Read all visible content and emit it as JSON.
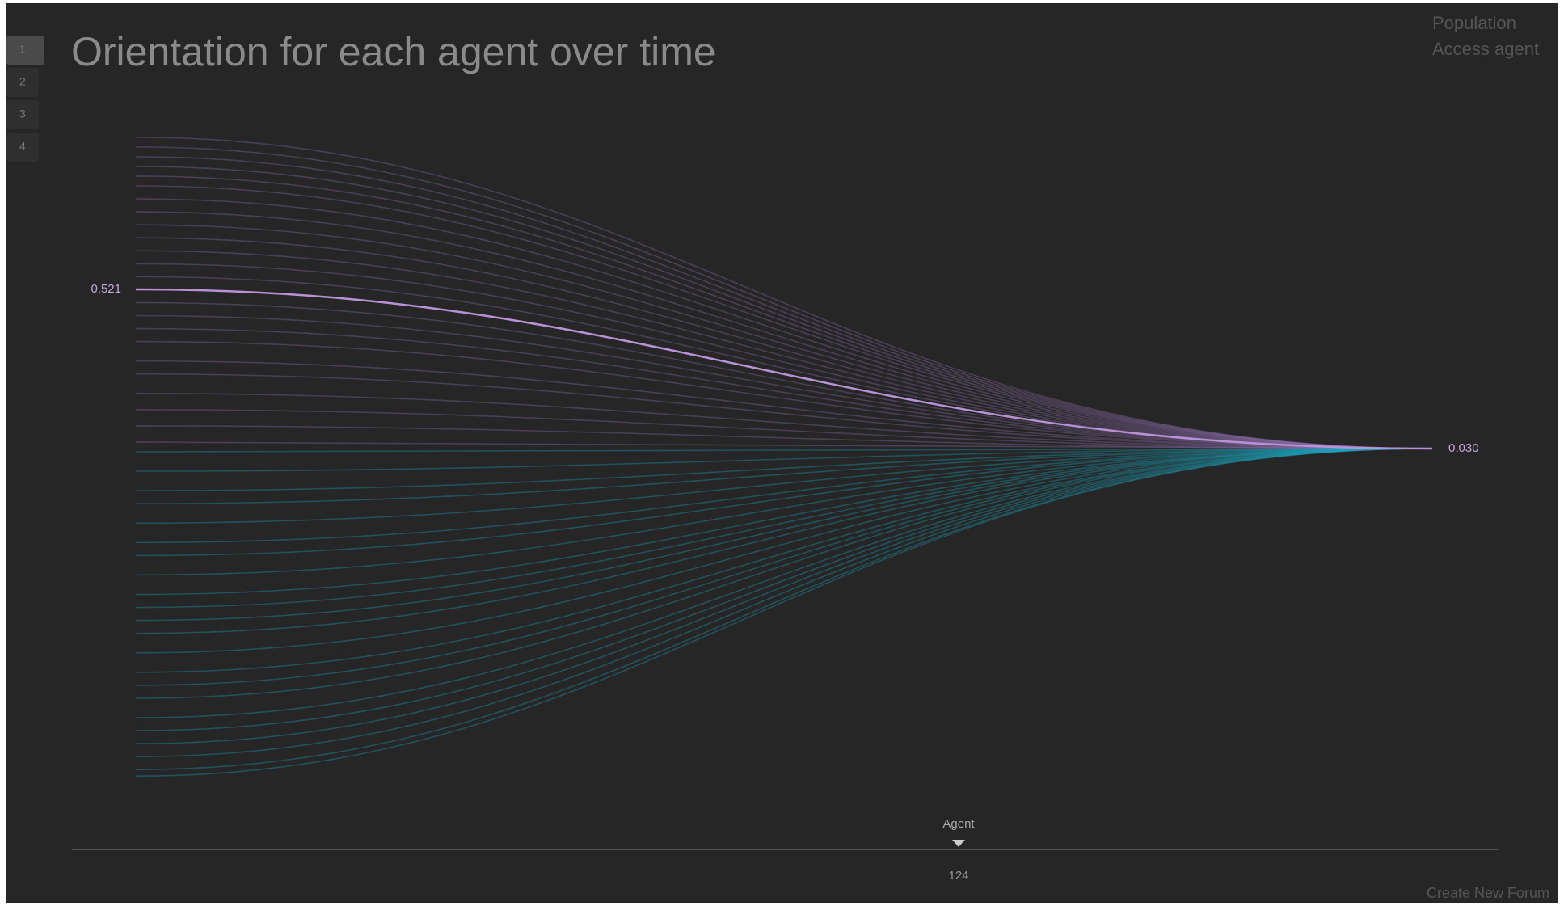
{
  "tabs": [
    "1",
    "2",
    "3",
    "4"
  ],
  "title": "Orientation for each agent over time",
  "menu": [
    "Population",
    "Access agent"
  ],
  "chart": {
    "start_values": [
      0.99,
      0.96,
      0.93,
      0.9,
      0.87,
      0.84,
      0.8,
      0.76,
      0.72,
      0.68,
      0.64,
      0.6,
      0.56,
      0.48,
      0.44,
      0.4,
      0.36,
      0.3,
      0.26,
      0.2,
      0.15,
      0.1,
      0.05,
      0.02,
      -0.04,
      -0.1,
      -0.14,
      -0.2,
      -0.26,
      -0.3,
      -0.36,
      -0.42,
      -0.46,
      -0.5,
      -0.54,
      -0.6,
      -0.66,
      -0.7,
      -0.74,
      -0.8,
      -0.84,
      -0.88,
      -0.92,
      -0.96,
      -0.98
    ],
    "highlight": {
      "value": 0.521,
      "label": "0,521"
    },
    "end": {
      "value": 0.03,
      "label": "0,030"
    },
    "colors": {
      "positive": "#8f6fae",
      "negative": "#1ea6bf",
      "highlight": "#b891d6"
    }
  },
  "slider": {
    "label": "Agent",
    "value": 124
  },
  "footer_link": "Create New Forum"
}
